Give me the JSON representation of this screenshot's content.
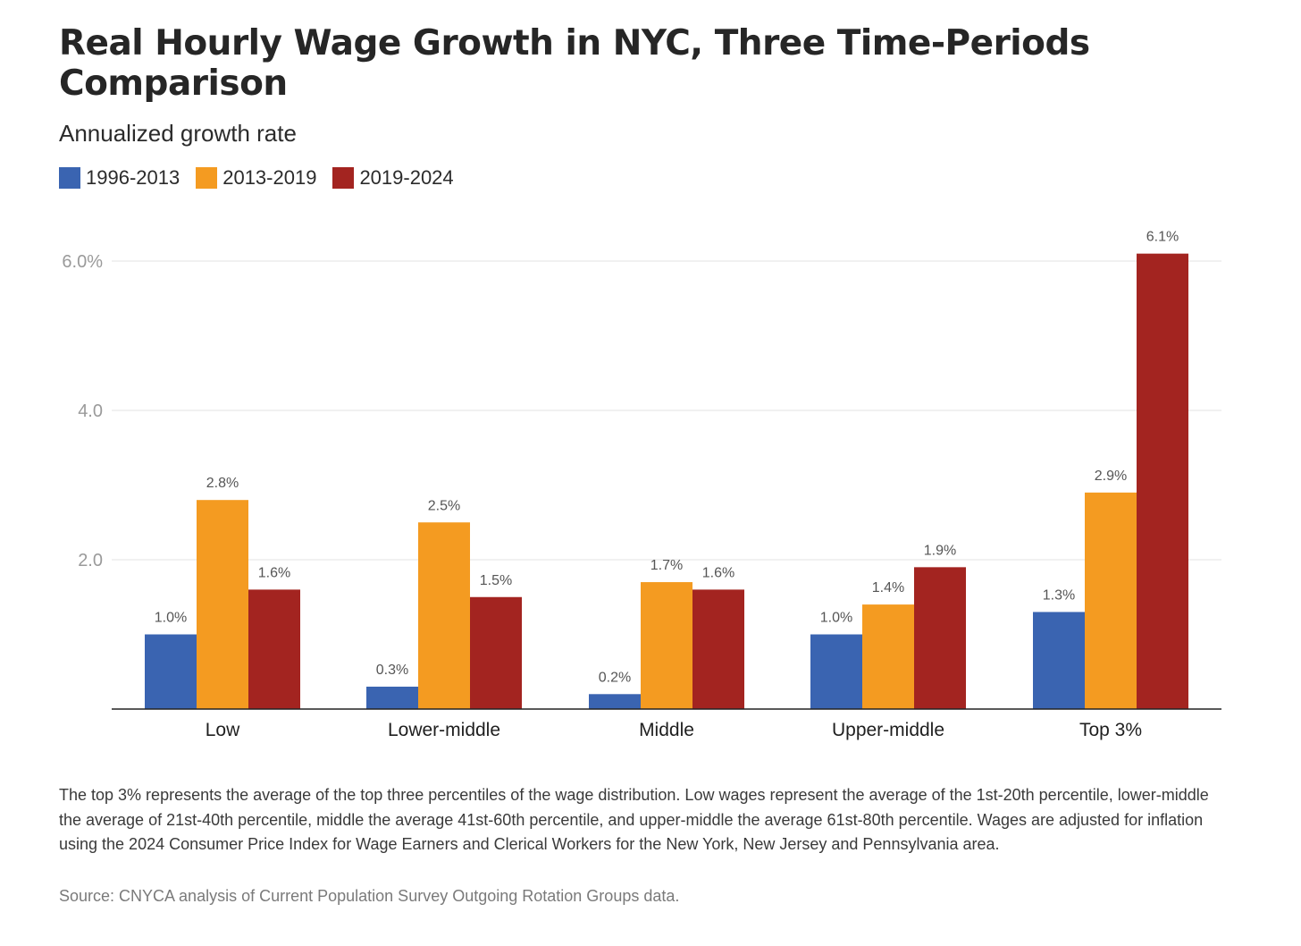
{
  "title": "Real Hourly Wage Growth in NYC, Three Time-Periods Comparison",
  "subtitle": "Annualized growth rate",
  "legend": [
    {
      "label": "1996-2013",
      "color": "#3a64b1"
    },
    {
      "label": "2013-2019",
      "color": "#f49b21"
    },
    {
      "label": "2019-2024",
      "color": "#a32420"
    }
  ],
  "chart_data": {
    "type": "bar",
    "title": "Real Hourly Wage Growth in NYC, Three Time-Periods Comparison",
    "subtitle": "Annualized growth rate",
    "categories": [
      "Low",
      "Lower-middle",
      "Middle",
      "Upper-middle",
      "Top 3%"
    ],
    "series": [
      {
        "name": "1996-2013",
        "color": "#3a64b1",
        "values": [
          1.0,
          0.3,
          0.2,
          1.0,
          1.3
        ],
        "labels": [
          "1.0%",
          "0.3%",
          "0.2%",
          "1.0%",
          "1.3%"
        ]
      },
      {
        "name": "2013-2019",
        "color": "#f49b21",
        "values": [
          2.8,
          2.5,
          1.7,
          1.4,
          2.9
        ],
        "labels": [
          "2.8%",
          "2.5%",
          "1.7%",
          "1.4%",
          "2.9%"
        ]
      },
      {
        "name": "2019-2024",
        "color": "#a32420",
        "values": [
          1.6,
          1.5,
          1.6,
          1.9,
          6.1
        ],
        "labels": [
          "1.6%",
          "1.5%",
          "1.6%",
          "1.9%",
          "6.1%"
        ]
      }
    ],
    "yticks": [
      {
        "value": 2.0,
        "label": "2.0"
      },
      {
        "value": 4.0,
        "label": "4.0"
      },
      {
        "value": 6.0,
        "label": "6.0%"
      }
    ],
    "ylim": [
      0,
      6.1
    ],
    "grid": true,
    "legend_position": "top-left"
  },
  "footnote": "The top 3% represents the average of the top three percentiles of the wage distribution. Low wages represent the average of the 1st-20th percentile, lower-middle the average of 21st-40th percentile, middle the average 41st-60th percentile, and upper-middle the average 61st-80th percentile. Wages are adjusted for inflation using the 2024 Consumer Price Index for Wage Earners and Clerical Workers for the New York, New Jersey and Pennsylvania area.",
  "source": "Source: CNYCA analysis of Current Population Survey Outgoing Rotation Groups data."
}
